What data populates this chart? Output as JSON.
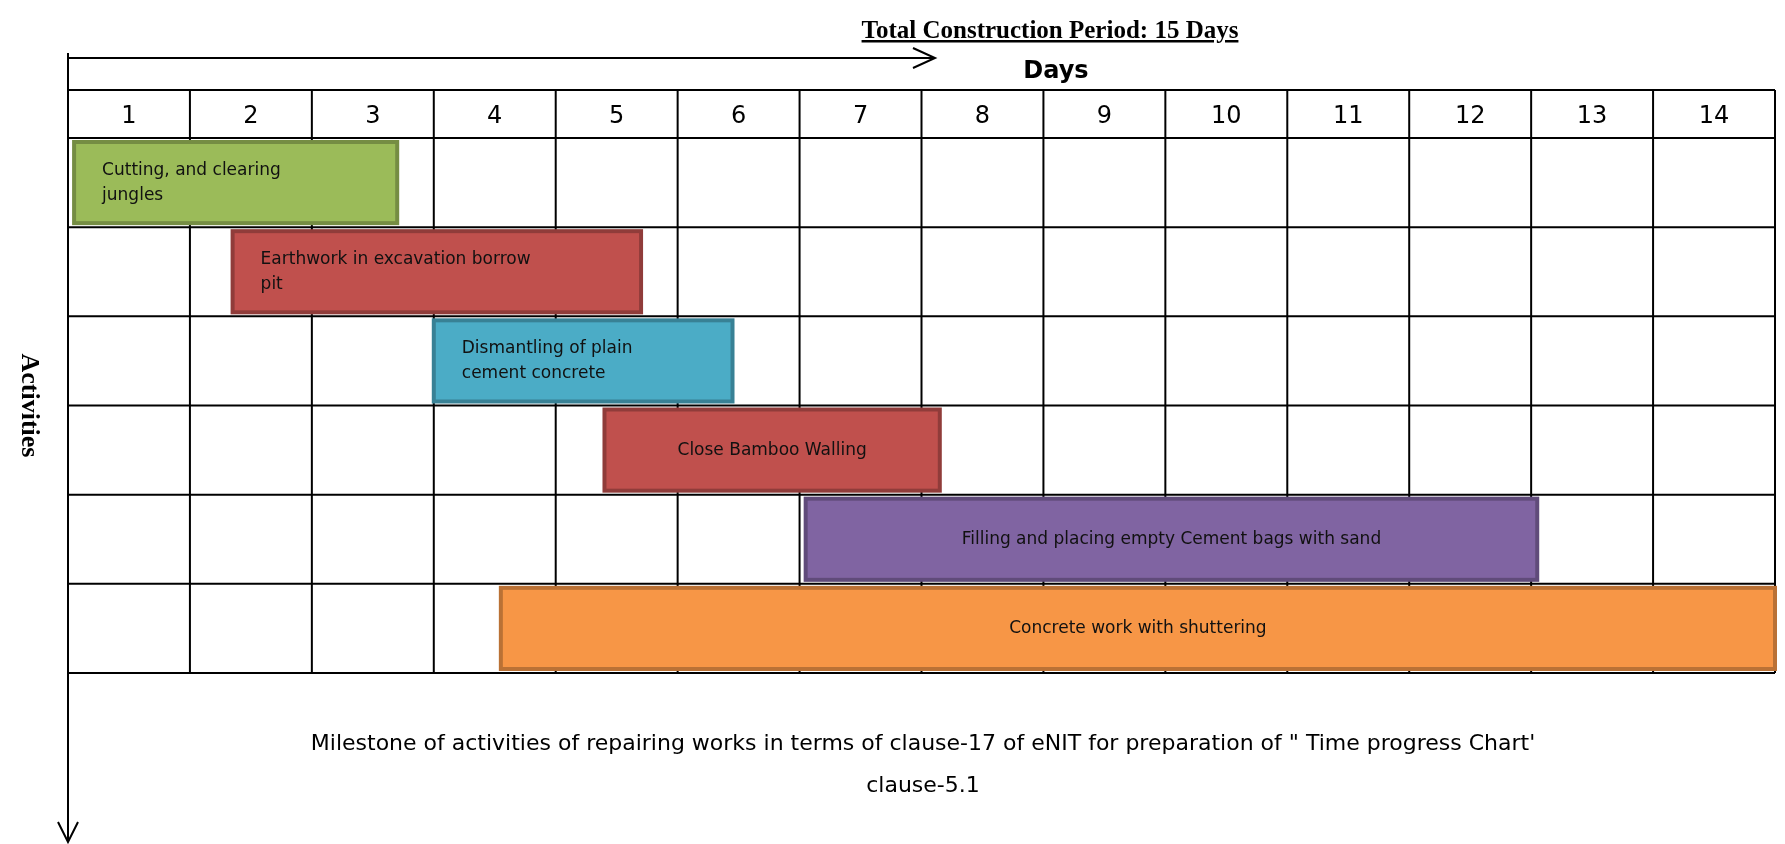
{
  "chart_data": {
    "type": "bar",
    "orientation": "horizontal",
    "title": "Total Construction Period: 15 Days",
    "xlabel": "Days",
    "ylabel": "Activities",
    "categories": [
      "Cutting,  and clearing jungles",
      "Earthwork in excavation borrow pit",
      "Dismantling  of plain cement concrete",
      "Close Bamboo Walling",
      "Filling and placing empty Cement bags with sand",
      "Concrete work with  shuttering"
    ],
    "base": [
      0.05,
      1.35,
      3.0,
      4.4,
      6.05,
      3.55
    ],
    "values": [
      2.65,
      3.35,
      2.45,
      2.75,
      6.0,
      10.45
    ],
    "colors": [
      "#9bbb59",
      "#c0504d",
      "#4bacc6",
      "#c0504d",
      "#8064a2",
      "#f79646"
    ],
    "xlim": [
      0,
      14
    ],
    "xticks": [
      {
        "value": 0,
        "label": null
      },
      {
        "value": 0.5,
        "label": "1"
      },
      {
        "value": 1,
        "label": null
      },
      {
        "value": 1.5,
        "label": "2"
      },
      {
        "value": 2,
        "label": null
      },
      {
        "value": 2.5,
        "label": "3"
      },
      {
        "value": 3,
        "label": null
      },
      {
        "value": 3.5,
        "label": "4"
      },
      {
        "value": 4,
        "label": null
      },
      {
        "value": 4.5,
        "label": "5"
      },
      {
        "value": 5,
        "label": null
      },
      {
        "value": 5.5,
        "label": "6"
      },
      {
        "value": 6,
        "label": null
      },
      {
        "value": 6.5,
        "label": "7"
      },
      {
        "value": 7,
        "label": null
      },
      {
        "value": 7.5,
        "label": "8"
      },
      {
        "value": 8,
        "label": null
      },
      {
        "value": 8.5,
        "label": "9"
      },
      {
        "value": 9,
        "label": null
      },
      {
        "value": 9.5,
        "label": "10"
      },
      {
        "value": 10,
        "label": null
      },
      {
        "value": 10.5,
        "label": "11"
      },
      {
        "value": 11,
        "label": null
      },
      {
        "value": 11.5,
        "label": "12"
      },
      {
        "value": 12,
        "label": null
      },
      {
        "value": 12.5,
        "label": "13"
      },
      {
        "value": 13,
        "label": null
      },
      {
        "value": 13.5,
        "label": "14"
      },
      {
        "value": 14,
        "label": null
      }
    ],
    "grid": true,
    "annotations": [
      "Milestone of activities of repairing works in terms of clause-17 of eNIT for preparation of \" Time progress Chart' clause-5.1"
    ]
  }
}
